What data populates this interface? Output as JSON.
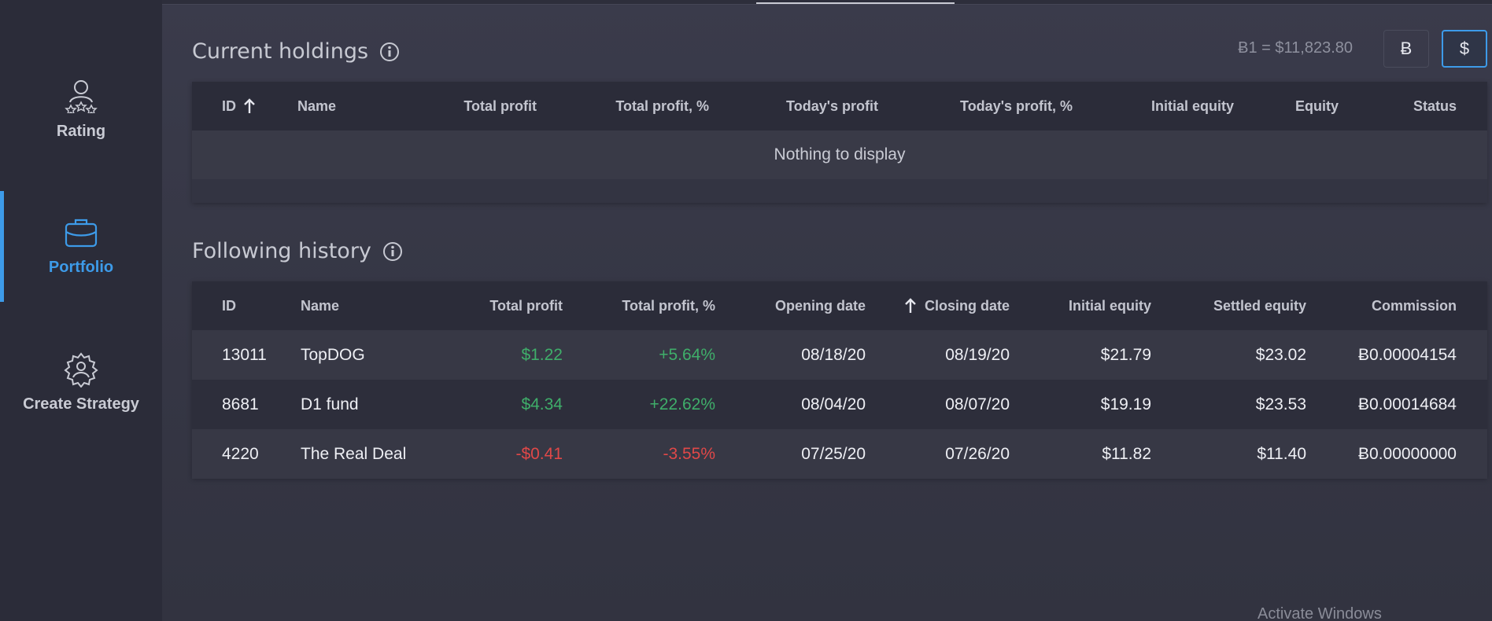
{
  "sidebar": {
    "items": [
      "Rating",
      "Portfolio",
      "Create Strategy"
    ]
  },
  "current_holdings": {
    "title": "Current holdings",
    "rate": "Ƀ1 = $11,823.80",
    "buttons": [
      "Ƀ",
      "$"
    ],
    "columns": [
      "ID",
      "Name",
      "Total profit",
      "Total profit, %",
      "Today's profit",
      "Today's profit, %",
      "Initial equity",
      "Equity",
      "Status"
    ],
    "empty": "Nothing to display"
  },
  "following_history": {
    "title": "Following history",
    "columns": [
      "ID",
      "Name",
      "Total profit",
      "Total profit, %",
      "Opening date",
      "Closing date",
      "Initial equity",
      "Settled equity",
      "Commission"
    ],
    "rows": [
      [
        "13011",
        "TopDOG",
        "$1.22",
        "+5.64%",
        "08/18/20",
        "08/19/20",
        "$21.79",
        "$23.02",
        "Ƀ0.00004154"
      ],
      [
        "8681",
        "D1 fund",
        "$4.34",
        "+22.62%",
        "08/04/20",
        "08/07/20",
        "$19.19",
        "$23.53",
        "Ƀ0.00014684"
      ],
      [
        "4220",
        "The Real Deal",
        "-$0.41",
        "-3.55%",
        "07/25/20",
        "07/26/20",
        "$11.82",
        "$11.40",
        "Ƀ0.00000000"
      ]
    ]
  },
  "watermark": "Activate Windows"
}
